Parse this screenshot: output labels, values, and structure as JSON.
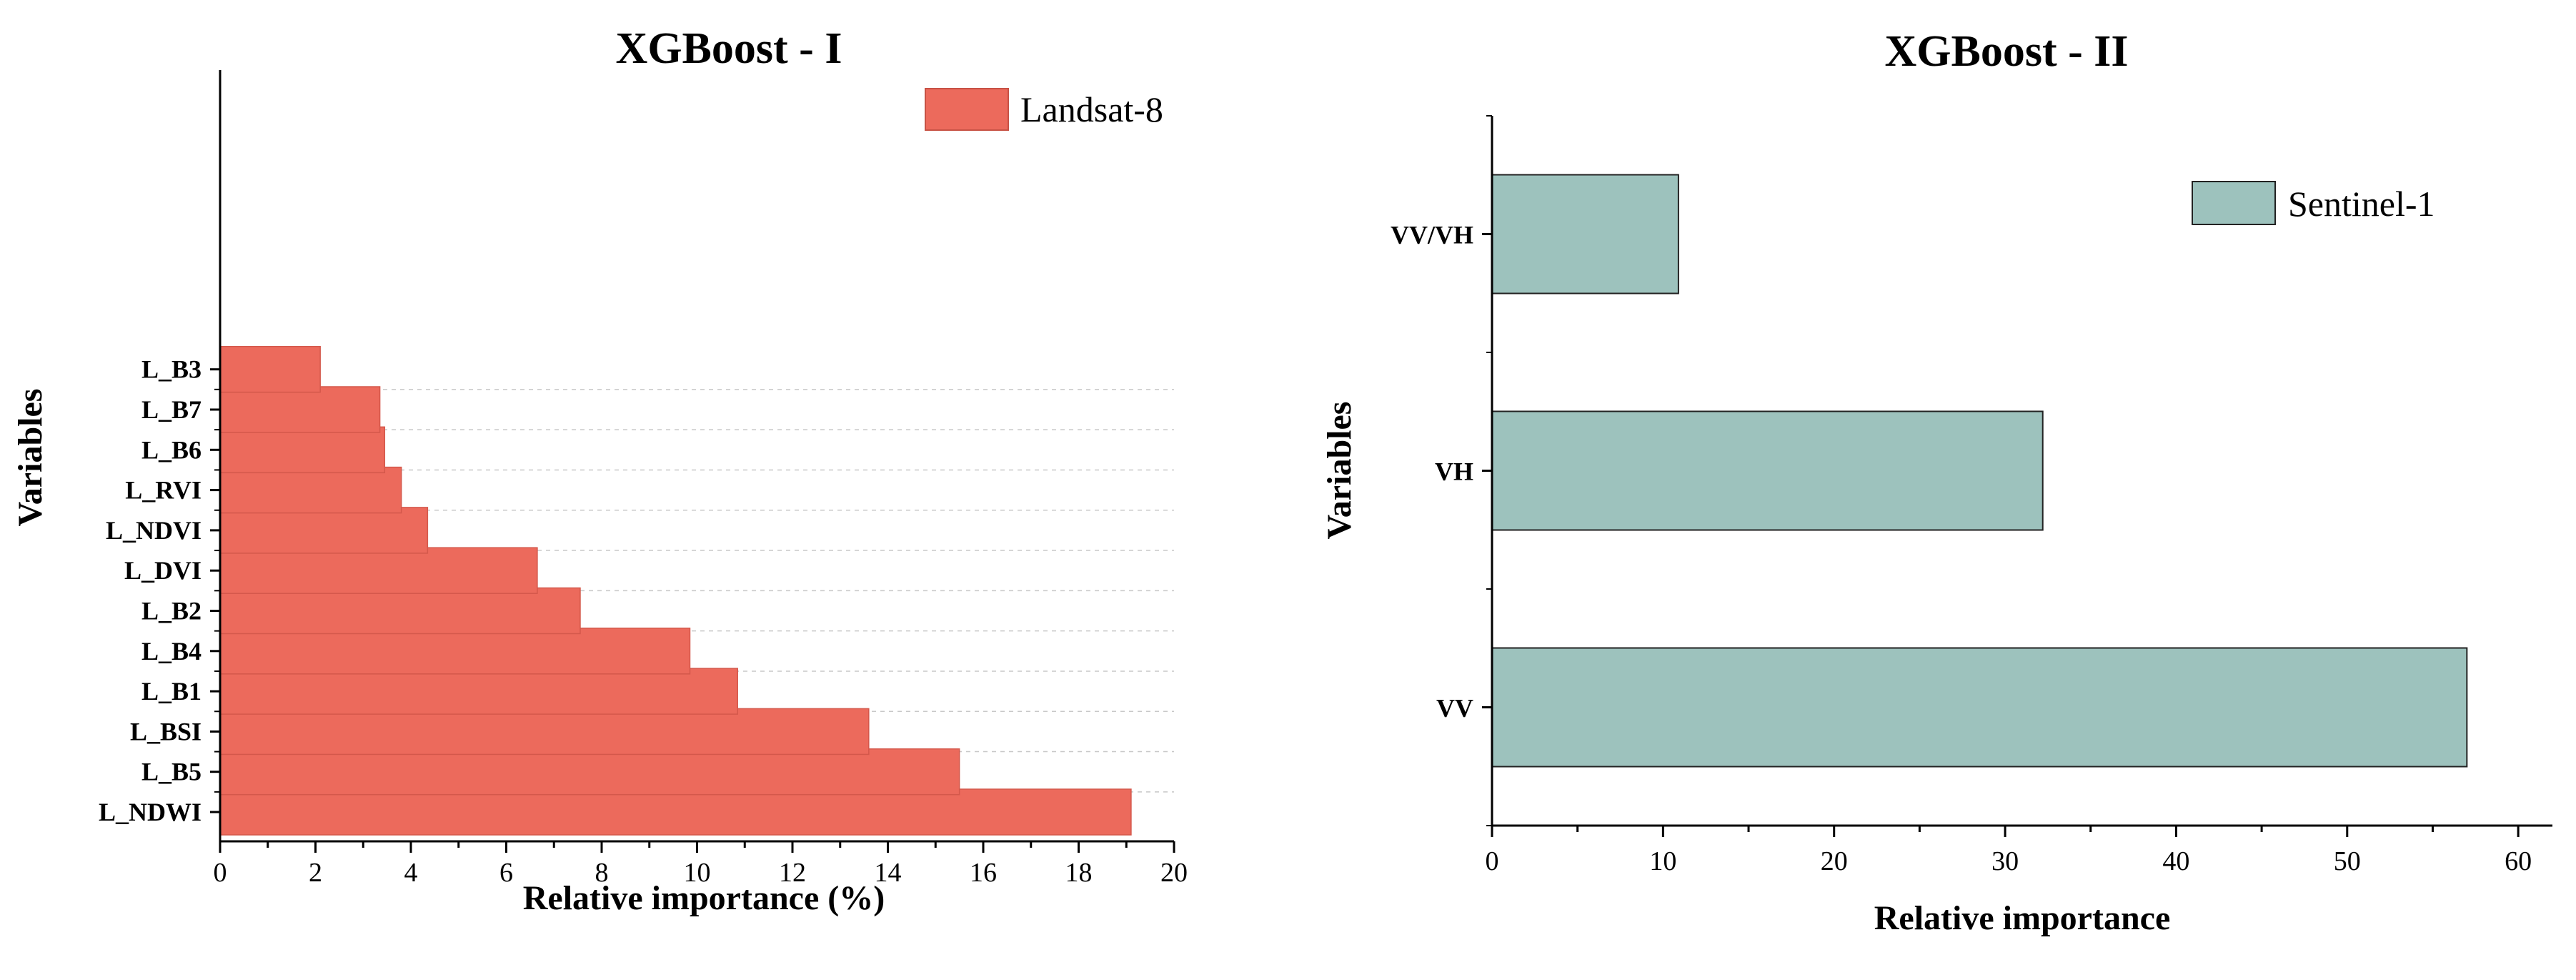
{
  "chart_data": [
    {
      "type": "bar",
      "orientation": "horizontal",
      "title": "XGBoost - I",
      "xlabel": "Relative importance (%)",
      "ylabel": "Variables",
      "categories": [
        "L_NDWI",
        "L_B5",
        "L_BSI",
        "L_B1",
        "L_B4",
        "L_B2",
        "L_DVI",
        "L_NDVI",
        "L_RVI",
        "L_B6",
        "L_B7",
        "L_B3"
      ],
      "series": [
        {
          "name": "Landsat-8",
          "values": [
            19.1,
            15.5,
            13.6,
            10.85,
            9.85,
            7.55,
            6.65,
            4.35,
            3.8,
            3.45,
            3.35,
            2.1
          ]
        }
      ],
      "xlim": [
        0,
        20
      ],
      "xticks": [
        "0",
        "2",
        "4",
        "6",
        "8",
        "10",
        "12",
        "14",
        "16",
        "18",
        "20"
      ],
      "grid": "horizontal dashed",
      "legend": "top-right",
      "colors": {
        "bar": "#ec6a5c"
      }
    },
    {
      "type": "bar",
      "orientation": "horizontal",
      "title": "XGBoost - II",
      "xlabel": "Relative importance",
      "ylabel": "Variables",
      "categories": [
        "VV",
        "VH",
        "VV/VH"
      ],
      "series": [
        {
          "name": "Sentinel-1",
          "values": [
            57.0,
            32.2,
            10.9
          ]
        }
      ],
      "xlim": [
        0,
        62
      ],
      "xticks": [
        "0",
        "10",
        "20",
        "30",
        "40",
        "50",
        "60"
      ],
      "grid": "none",
      "legend": "top-right",
      "colors": {
        "bar": "#9dc2bd"
      }
    }
  ]
}
